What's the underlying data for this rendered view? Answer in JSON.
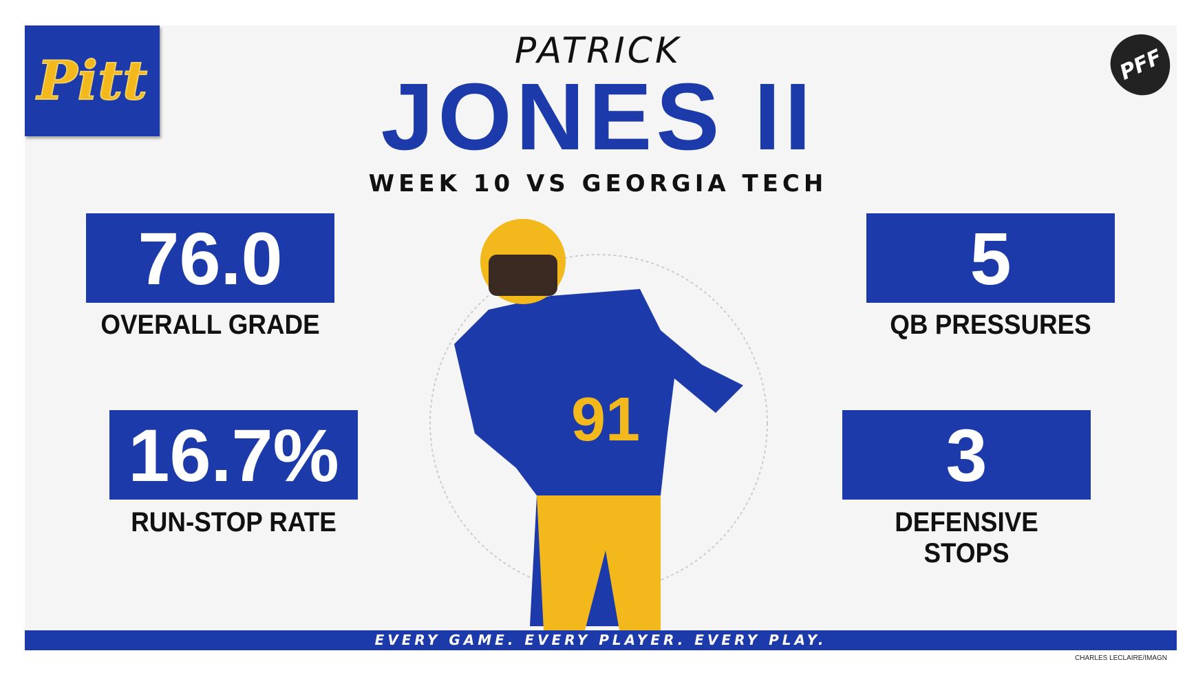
{
  "logo": {
    "team": "Pitt",
    "brand": "PFF"
  },
  "header": {
    "first_name": "PATRICK",
    "last_name": "JONES II",
    "subtitle": "WEEK 10 VS GEORGIA TECH"
  },
  "stats": [
    {
      "value": "76.0",
      "label": "OVERALL GRADE"
    },
    {
      "value": "16.7%",
      "label": "RUN-STOP RATE"
    },
    {
      "value": "5",
      "label": "QB PRESSURES"
    },
    {
      "value": "3",
      "label": "DEFENSIVE STOPS"
    }
  ],
  "footer": {
    "tagline": "EVERY GAME. EVERY PLAYER. EVERY PLAY.",
    "credit": "CHARLES LECLAIRE/IMAGN"
  }
}
